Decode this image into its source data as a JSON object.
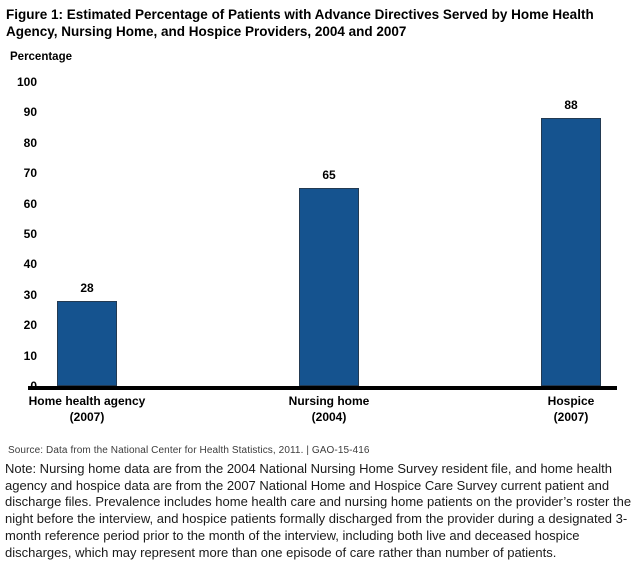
{
  "title": "Figure 1: Estimated Percentage of Patients with Advance Directives Served by Home Health Agency, Nursing Home, and Hospice Providers, 2004 and 2007",
  "chart_data": {
    "type": "bar",
    "ylabel": "Percentage",
    "xlabel": "",
    "ylim": [
      0,
      100
    ],
    "grid": false,
    "legend": "none",
    "yticks": [
      100,
      90,
      80,
      70,
      60,
      50,
      40,
      30,
      20,
      10,
      0
    ],
    "categories": [
      {
        "line1": "Home health agency",
        "line2": "(2007)"
      },
      {
        "line1": "Nursing home",
        "line2": "(2004)"
      },
      {
        "line1": "Hospice",
        "line2": "(2007)"
      }
    ],
    "values": [
      28,
      65,
      88
    ],
    "bar_color": "#15538F",
    "bar_border_color": "#233a52",
    "axis_color": "#000000"
  },
  "source_note": "Source: Data from the National Center for Health Statistics, 2011.  |  GAO-15-416",
  "note": "Note: Nursing home data are from the 2004 National Nursing Home Survey resident file, and home health agency and hospice data are from the 2007 National Home and Hospice Care Survey current patient and discharge files. Prevalence includes home health care and nursing home patients on the provider’s roster the night before the interview, and hospice patients formally discharged from the provider during a designated 3-month reference period prior to the month of the interview, including both live and deceased hospice discharges, which may represent more than one episode of care rather than number of patients."
}
